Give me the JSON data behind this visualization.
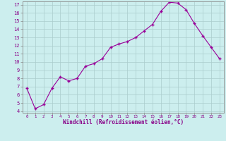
{
  "x": [
    0,
    1,
    2,
    3,
    4,
    5,
    6,
    7,
    8,
    9,
    10,
    11,
    12,
    13,
    14,
    15,
    16,
    17,
    18,
    19,
    20,
    21,
    22,
    23
  ],
  "y": [
    6.8,
    4.3,
    4.8,
    6.8,
    8.2,
    7.7,
    8.0,
    9.5,
    9.8,
    10.4,
    11.8,
    12.2,
    12.5,
    13.0,
    13.8,
    14.6,
    16.2,
    17.3,
    17.2,
    16.4,
    14.7,
    13.2,
    11.8,
    10.4
  ],
  "xlabel": "Windchill (Refroidissement éolien,°C)",
  "ylim_min": 3.8,
  "ylim_max": 17.4,
  "xlim_min": -0.5,
  "xlim_max": 23.5,
  "yticks": [
    4,
    5,
    6,
    7,
    8,
    9,
    10,
    11,
    12,
    13,
    14,
    15,
    16,
    17
  ],
  "xticks": [
    0,
    1,
    2,
    3,
    4,
    5,
    6,
    7,
    8,
    9,
    10,
    11,
    12,
    13,
    14,
    15,
    16,
    17,
    18,
    19,
    20,
    21,
    22,
    23
  ],
  "line_color": "#990099",
  "bg_color": "#cceeee",
  "grid_color": "#aacccc",
  "label_color": "#880088",
  "spine_color": "#888888"
}
